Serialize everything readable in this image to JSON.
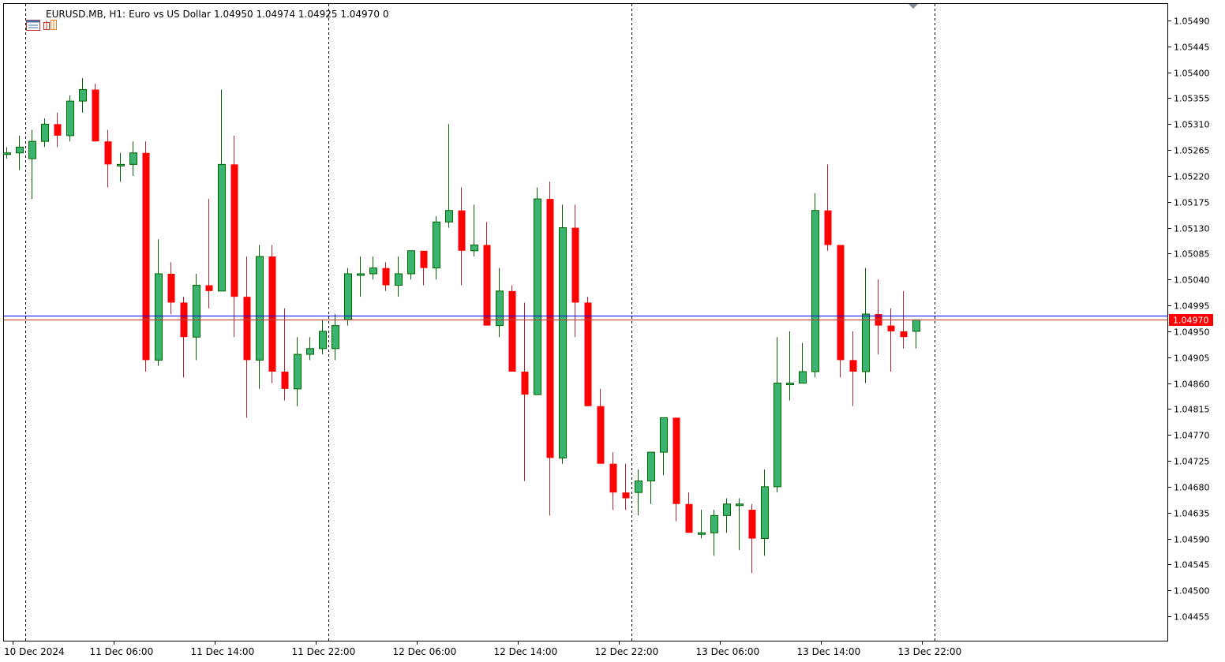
{
  "header": {
    "symbol": "EURUSD.MB, H1:",
    "description": "Euro vs US Dollar",
    "ohlc": "1.04950 1.04974 1.04925 1.04970",
    "extra": "0",
    "icon_left": "chart-window-icon",
    "icon_right": "trade-ticket-icon"
  },
  "colors": {
    "bull": "#3cb371",
    "bear": "#ff0000",
    "wick_bull": "#006400",
    "wick_bear": "#b22222",
    "ask_line": "#0000ff",
    "bid_line": "#c0392b",
    "price_tag": "#ff0000",
    "frame": "#000000",
    "separator": "#000000"
  },
  "chart_data": {
    "type": "candlestick",
    "symbol": "EURUSD.MB",
    "timeframe": "H1",
    "ylim": [
      1.0441,
      1.0553
    ],
    "y_ticks": [
      "1.05490",
      "1.05445",
      "1.05400",
      "1.05355",
      "1.05310",
      "1.05265",
      "1.05220",
      "1.05175",
      "1.05130",
      "1.05085",
      "1.05040",
      "1.04995",
      "1.04950",
      "1.04905",
      "1.04860",
      "1.04815",
      "1.04770",
      "1.04725",
      "1.04680",
      "1.04635",
      "1.04590",
      "1.04545",
      "1.04500",
      "1.04455"
    ],
    "x_labels": [
      {
        "bar": 1,
        "label": "10 Dec 2024"
      },
      {
        "bar": 9,
        "label": "11 Dec 06:00"
      },
      {
        "bar": 17,
        "label": "11 Dec 14:00"
      },
      {
        "bar": 25,
        "label": "11 Dec 22:00"
      },
      {
        "bar": 33,
        "label": "12 Dec 06:00"
      },
      {
        "bar": 41,
        "label": "12 Dec 14:00"
      },
      {
        "bar": 49,
        "label": "12 Dec 22:00"
      },
      {
        "bar": 57,
        "label": "13 Dec 06:00"
      },
      {
        "bar": 65,
        "label": "13 Dec 14:00"
      },
      {
        "bar": 73,
        "label": "13 Dec 22:00"
      }
    ],
    "day_separators": [
      1.5,
      25.5,
      49.5,
      73.5
    ],
    "current_price": "1.04970",
    "ask_price": 1.04977,
    "bid_price": 1.0497,
    "candles": [
      {
        "o": 1.0526,
        "h": 1.0527,
        "l": 1.0525,
        "c": 1.0526
      },
      {
        "o": 1.0526,
        "h": 1.0529,
        "l": 1.0523,
        "c": 1.0527
      },
      {
        "o": 1.0525,
        "h": 1.053,
        "l": 1.0518,
        "c": 1.0528
      },
      {
        "o": 1.0528,
        "h": 1.0532,
        "l": 1.0527,
        "c": 1.0531
      },
      {
        "o": 1.0531,
        "h": 1.0533,
        "l": 1.0527,
        "c": 1.0529
      },
      {
        "o": 1.0529,
        "h": 1.0536,
        "l": 1.0528,
        "c": 1.0535
      },
      {
        "o": 1.0535,
        "h": 1.0539,
        "l": 1.0533,
        "c": 1.0537
      },
      {
        "o": 1.0537,
        "h": 1.0538,
        "l": 1.0528,
        "c": 1.0528
      },
      {
        "o": 1.0528,
        "h": 1.053,
        "l": 1.052,
        "c": 1.0524
      },
      {
        "o": 1.0524,
        "h": 1.0526,
        "l": 1.0521,
        "c": 1.0524
      },
      {
        "o": 1.0524,
        "h": 1.0528,
        "l": 1.0522,
        "c": 1.0526
      },
      {
        "o": 1.0526,
        "h": 1.0528,
        "l": 1.0488,
        "c": 1.049
      },
      {
        "o": 1.049,
        "h": 1.0511,
        "l": 1.0489,
        "c": 1.0505
      },
      {
        "o": 1.0505,
        "h": 1.0507,
        "l": 1.0498,
        "c": 1.05
      },
      {
        "o": 1.05,
        "h": 1.0501,
        "l": 1.0487,
        "c": 1.0494
      },
      {
        "o": 1.0494,
        "h": 1.0505,
        "l": 1.049,
        "c": 1.0503
      },
      {
        "o": 1.0503,
        "h": 1.0518,
        "l": 1.0499,
        "c": 1.0502
      },
      {
        "o": 1.0502,
        "h": 1.0537,
        "l": 1.0502,
        "c": 1.0524
      },
      {
        "o": 1.0524,
        "h": 1.0529,
        "l": 1.0494,
        "c": 1.0501
      },
      {
        "o": 1.0501,
        "h": 1.0508,
        "l": 1.048,
        "c": 1.049
      },
      {
        "o": 1.049,
        "h": 1.051,
        "l": 1.0485,
        "c": 1.0508
      },
      {
        "o": 1.0508,
        "h": 1.051,
        "l": 1.0486,
        "c": 1.0488
      },
      {
        "o": 1.0488,
        "h": 1.0499,
        "l": 1.0483,
        "c": 1.0485
      },
      {
        "o": 1.0485,
        "h": 1.0494,
        "l": 1.0482,
        "c": 1.0491
      },
      {
        "o": 1.0491,
        "h": 1.0494,
        "l": 1.049,
        "c": 1.0492
      },
      {
        "o": 1.0492,
        "h": 1.0497,
        "l": 1.0491,
        "c": 1.0495
      },
      {
        "o": 1.0492,
        "h": 1.0498,
        "l": 1.049,
        "c": 1.0496
      },
      {
        "o": 1.0497,
        "h": 1.0506,
        "l": 1.0496,
        "c": 1.0505
      },
      {
        "o": 1.0505,
        "h": 1.0508,
        "l": 1.0501,
        "c": 1.0505
      },
      {
        "o": 1.0505,
        "h": 1.0508,
        "l": 1.0504,
        "c": 1.0506
      },
      {
        "o": 1.0506,
        "h": 1.0507,
        "l": 1.0502,
        "c": 1.0503
      },
      {
        "o": 1.0503,
        "h": 1.0508,
        "l": 1.0501,
        "c": 1.0505
      },
      {
        "o": 1.0505,
        "h": 1.0509,
        "l": 1.0504,
        "c": 1.0509
      },
      {
        "o": 1.0509,
        "h": 1.0509,
        "l": 1.0503,
        "c": 1.0506
      },
      {
        "o": 1.0506,
        "h": 1.0515,
        "l": 1.0504,
        "c": 1.0514
      },
      {
        "o": 1.0514,
        "h": 1.0531,
        "l": 1.0513,
        "c": 1.0516
      },
      {
        "o": 1.0516,
        "h": 1.052,
        "l": 1.0503,
        "c": 1.0509
      },
      {
        "o": 1.0509,
        "h": 1.0517,
        "l": 1.0508,
        "c": 1.051
      },
      {
        "o": 1.051,
        "h": 1.0514,
        "l": 1.0496,
        "c": 1.0496
      },
      {
        "o": 1.0496,
        "h": 1.0506,
        "l": 1.0494,
        "c": 1.0502
      },
      {
        "o": 1.0502,
        "h": 1.0503,
        "l": 1.0488,
        "c": 1.0488
      },
      {
        "o": 1.0488,
        "h": 1.05,
        "l": 1.0469,
        "c": 1.0484
      },
      {
        "o": 1.0484,
        "h": 1.052,
        "l": 1.0484,
        "c": 1.0518
      },
      {
        "o": 1.0518,
        "h": 1.0521,
        "l": 1.0463,
        "c": 1.0473
      },
      {
        "o": 1.0473,
        "h": 1.0517,
        "l": 1.0472,
        "c": 1.0513
      },
      {
        "o": 1.0513,
        "h": 1.0517,
        "l": 1.0494,
        "c": 1.05
      },
      {
        "o": 1.05,
        "h": 1.0501,
        "l": 1.0482,
        "c": 1.0482
      },
      {
        "o": 1.0482,
        "h": 1.0485,
        "l": 1.0472,
        "c": 1.0472
      },
      {
        "o": 1.0472,
        "h": 1.0474,
        "l": 1.0464,
        "c": 1.0467
      },
      {
        "o": 1.0467,
        "h": 1.0472,
        "l": 1.0464,
        "c": 1.0466
      },
      {
        "o": 1.0467,
        "h": 1.0471,
        "l": 1.0463,
        "c": 1.0469
      },
      {
        "o": 1.0469,
        "h": 1.0474,
        "l": 1.0465,
        "c": 1.0474
      },
      {
        "o": 1.0474,
        "h": 1.048,
        "l": 1.047,
        "c": 1.048
      },
      {
        "o": 1.048,
        "h": 1.048,
        "l": 1.0462,
        "c": 1.0465
      },
      {
        "o": 1.0465,
        "h": 1.0467,
        "l": 1.046,
        "c": 1.046
      },
      {
        "o": 1.046,
        "h": 1.0464,
        "l": 1.0459,
        "c": 1.046
      },
      {
        "o": 1.046,
        "h": 1.0464,
        "l": 1.0456,
        "c": 1.0463
      },
      {
        "o": 1.0463,
        "h": 1.0466,
        "l": 1.046,
        "c": 1.0465
      },
      {
        "o": 1.0465,
        "h": 1.0466,
        "l": 1.0457,
        "c": 1.0465
      },
      {
        "o": 1.0464,
        "h": 1.0465,
        "l": 1.0453,
        "c": 1.0459
      },
      {
        "o": 1.0459,
        "h": 1.0471,
        "l": 1.0456,
        "c": 1.0468
      },
      {
        "o": 1.0468,
        "h": 1.0494,
        "l": 1.0467,
        "c": 1.0486
      },
      {
        "o": 1.0486,
        "h": 1.0495,
        "l": 1.0483,
        "c": 1.0486
      },
      {
        "o": 1.0486,
        "h": 1.0493,
        "l": 1.0486,
        "c": 1.0488
      },
      {
        "o": 1.0488,
        "h": 1.0519,
        "l": 1.0487,
        "c": 1.0516
      },
      {
        "o": 1.0516,
        "h": 1.0524,
        "l": 1.0509,
        "c": 1.051
      },
      {
        "o": 1.051,
        "h": 1.051,
        "l": 1.0487,
        "c": 1.049
      },
      {
        "o": 1.049,
        "h": 1.0495,
        "l": 1.0482,
        "c": 1.0488
      },
      {
        "o": 1.0488,
        "h": 1.0506,
        "l": 1.0486,
        "c": 1.0498
      },
      {
        "o": 1.0498,
        "h": 1.0504,
        "l": 1.0491,
        "c": 1.0496
      },
      {
        "o": 1.0496,
        "h": 1.0499,
        "l": 1.0488,
        "c": 1.0495
      },
      {
        "o": 1.0495,
        "h": 1.0502,
        "l": 1.0492,
        "c": 1.0494
      },
      {
        "o": 1.0495,
        "h": 1.0497,
        "l": 1.0492,
        "c": 1.0497
      }
    ]
  }
}
